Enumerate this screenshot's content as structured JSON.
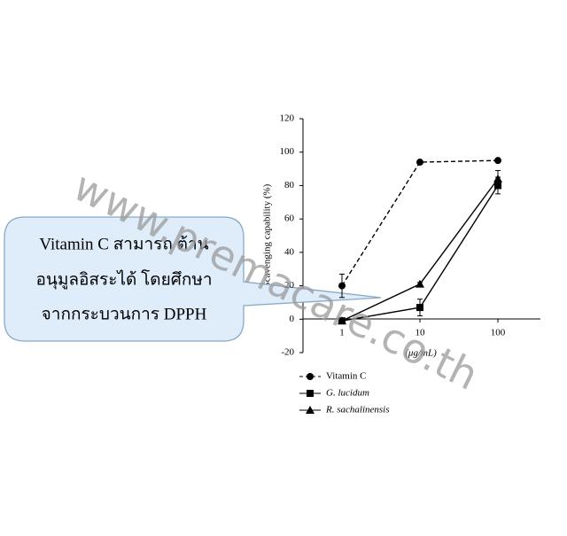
{
  "chart_data": {
    "type": "line",
    "y_label": "Scavenging capability (%)",
    "x_label": "(μg/mL)",
    "categories": [
      "1",
      "10",
      "100"
    ],
    "ylim": [
      -20,
      120
    ],
    "yticks": [
      -20,
      0,
      20,
      40,
      60,
      80,
      100,
      120
    ],
    "series": [
      {
        "name": "Vitamin C",
        "color": "#000000",
        "marker": "circle",
        "dashed": true,
        "values": [
          20,
          94,
          95
        ],
        "errors": [
          7,
          1,
          1
        ]
      },
      {
        "name": "G. lucidum",
        "color": "#000000",
        "marker": "square",
        "dashed": false,
        "values": [
          -1,
          7,
          80
        ],
        "errors": [
          1,
          5,
          5
        ]
      },
      {
        "name": "R. sachalinensis",
        "color": "#000000",
        "marker": "triangle",
        "dashed": false,
        "values": [
          -1,
          21,
          84
        ],
        "errors": [
          1,
          1,
          5
        ]
      }
    ],
    "annotation": [
      "Vitamin C สามารถ ต้าน",
      "อนุมูลอิสระได้ โดยศึกษา",
      "จากกระบวนการ DPPH"
    ],
    "watermark": "www.premacare.co.th"
  }
}
